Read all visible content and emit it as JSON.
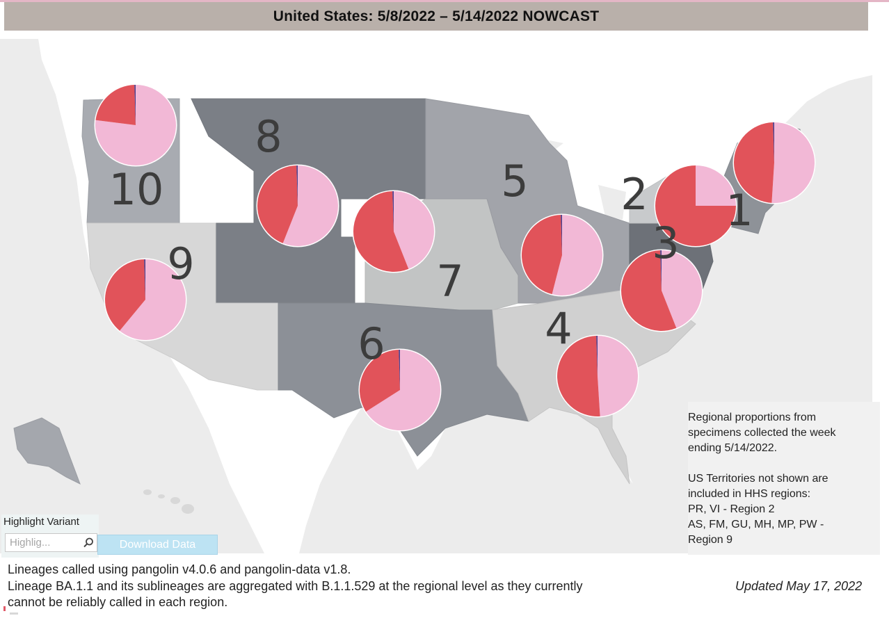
{
  "title": "United States: 5/8/2022 – 5/14/2022 NOWCAST",
  "map": {
    "colors": {
      "background": "#ececec",
      "land": "#ffffff",
      "pie_red": "#e1535a",
      "pie_pink": "#f2b8d6",
      "sliver": "#4b3f8c"
    },
    "regions": [
      {
        "id": "1",
        "label": "1",
        "pie": {
          "red": 0.49,
          "pink": 0.51,
          "sliver": 0.005
        }
      },
      {
        "id": "2",
        "label": "2",
        "pie": {
          "red": 0.75,
          "pink": 0.25,
          "sliver": 0.0
        }
      },
      {
        "id": "3",
        "label": "3",
        "pie": {
          "red": 0.56,
          "pink": 0.44,
          "sliver": 0.005
        }
      },
      {
        "id": "4",
        "label": "4",
        "pie": {
          "red": 0.51,
          "pink": 0.49,
          "sliver": 0.005
        }
      },
      {
        "id": "5",
        "label": "5",
        "pie": {
          "red": 0.46,
          "pink": 0.54,
          "sliver": 0.005
        }
      },
      {
        "id": "6",
        "label": "6",
        "pie": {
          "red": 0.34,
          "pink": 0.66,
          "sliver": 0.005
        }
      },
      {
        "id": "7",
        "label": "7",
        "pie": {
          "red": 0.56,
          "pink": 0.44,
          "sliver": 0.005
        }
      },
      {
        "id": "8",
        "label": "8",
        "pie": {
          "red": 0.44,
          "pink": 0.56,
          "sliver": 0.005
        }
      },
      {
        "id": "9",
        "label": "9",
        "pie": {
          "red": 0.39,
          "pink": 0.61,
          "sliver": 0.005
        }
      },
      {
        "id": "10",
        "label": "10",
        "pie": {
          "red": 0.23,
          "pink": 0.77,
          "sliver": 0.005
        }
      }
    ]
  },
  "note": {
    "para1": "Regional proportions from\nspecimens collected the week\nending 5/14/2022.",
    "para2": "US Territories not shown are\nincluded in HHS regions:\nPR, VI - Region 2\nAS, FM, GU, MH, MP, PW -\nRegion 9"
  },
  "highlight": {
    "label": "Highlight Variant",
    "placeholder": "Highlig..."
  },
  "download_label": "Download Data",
  "footer": {
    "line1": "Lineages called using pangolin v4.0.6 and pangolin-data v1.8.",
    "line2": "Lineage BA.1.1 and its sublineages are aggregated with B.1.1.529 at the regional level as they currently",
    "line3": "cannot be reliably called in each region.",
    "updated": "Updated May 17, 2022"
  },
  "icons": {
    "search": "search-icon"
  }
}
